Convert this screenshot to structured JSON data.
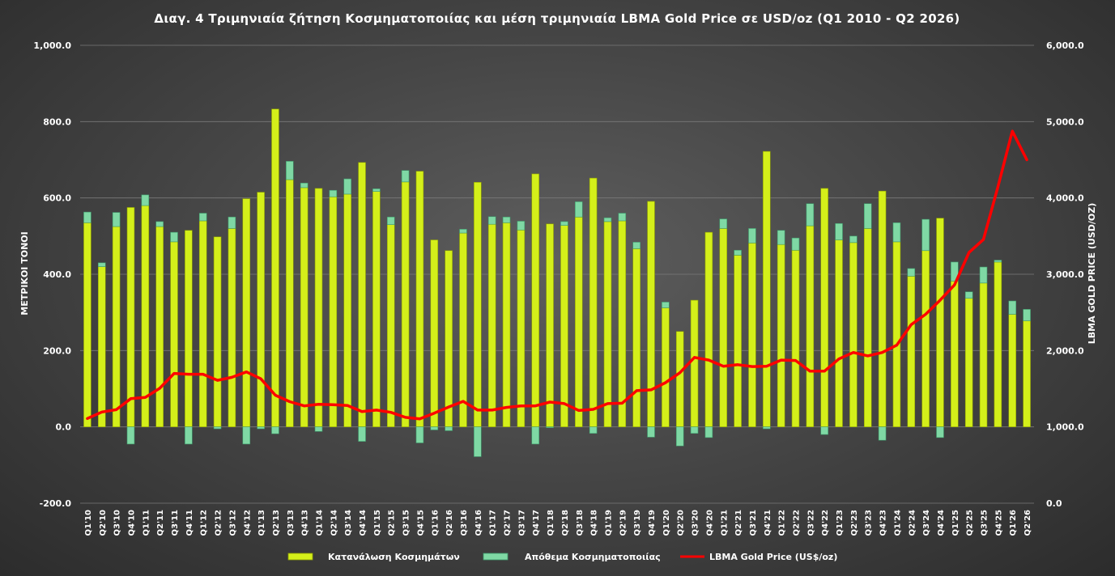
{
  "chart_data": {
    "type": "bar",
    "stacked": true,
    "title": "Διαγ. 4 Τριμηνιαία ζήτηση Κοσμηματοποιίας και μέση τριμηνιαία LBMA Gold Price σε USD/oz (Q1 2010 - Q2 2026)",
    "ylabel": "ΜΕΤΡΙΚΟΙ ΤΟΝΟΙ",
    "y2label": "LBMA GOLD PRICE (USD/OZ)",
    "ylim": [
      -200,
      1000
    ],
    "y2lim": [
      0,
      6000
    ],
    "y_ticks": [
      "-200.0",
      "0.0",
      "200.0",
      "400.0",
      "600.0",
      "800.0",
      "1,000.0"
    ],
    "y2_ticks": [
      "0.0",
      "1,000.0",
      "2,000.0",
      "3,000.0",
      "4,000.0",
      "5,000.0",
      "6,000.0"
    ],
    "grid": true,
    "legend_position": "bottom",
    "categories": [
      "Q1'10",
      "Q2'10",
      "Q3'10",
      "Q4'10",
      "Q1'11",
      "Q2'11",
      "Q3'11",
      "Q4'11",
      "Q1'12",
      "Q2'12",
      "Q3'12",
      "Q4'12",
      "Q1'13",
      "Q2'13",
      "Q3'13",
      "Q4'13",
      "Q1'14",
      "Q2'14",
      "Q3'14",
      "Q4'14",
      "Q1'15",
      "Q2'15",
      "Q3'15",
      "Q4'15",
      "Q1'16",
      "Q2'16",
      "Q3'16",
      "Q4'16",
      "Q1'17",
      "Q2'17",
      "Q3'17",
      "Q4'17",
      "Q1'18",
      "Q2'18",
      "Q3'18",
      "Q4'18",
      "Q1'19",
      "Q2'19",
      "Q3'19",
      "Q4'19",
      "Q1'20",
      "Q2'20",
      "Q3'20",
      "Q4'20",
      "Q1'21",
      "Q2'21",
      "Q3'21",
      "Q4'21",
      "Q1'22",
      "Q2'22",
      "Q3'22",
      "Q4'22",
      "Q1'23",
      "Q2'23",
      "Q3'23",
      "Q4'23",
      "Q1'24",
      "Q2'24",
      "Q3'24",
      "Q4'24",
      "Q1'25",
      "Q2'25",
      "Q3'25",
      "Q4'25",
      "Q1'26",
      "Q2'26"
    ],
    "series": [
      {
        "name": "Κατανάλωση Κοσμημάτων",
        "kind": "bar",
        "axis": "left",
        "color": "#d4ef1a",
        "values": [
          535,
          420,
          525,
          575,
          580,
          525,
          485,
          515,
          540,
          498,
          520,
          598,
          615,
          833,
          648,
          627,
          625,
          603,
          610,
          693,
          617,
          530,
          642,
          670,
          490,
          462,
          508,
          641,
          531,
          535,
          516,
          663,
          532,
          528,
          550,
          652,
          538,
          540,
          467,
          591,
          312,
          250,
          332,
          510,
          520,
          450,
          482,
          722,
          478,
          463,
          527,
          625,
          490,
          483,
          520,
          618,
          485,
          395,
          462,
          547,
          382,
          337,
          377,
          432,
          295,
          278
        ]
      },
      {
        "name": "Απόθεμα Κοσμηματοποιίας",
        "kind": "bar",
        "axis": "left",
        "color": "#7fd8a4",
        "values": [
          28,
          10,
          37,
          -45,
          28,
          13,
          25,
          -45,
          20,
          -5,
          30,
          -45,
          -5,
          -18,
          48,
          12,
          -12,
          17,
          40,
          -38,
          7,
          20,
          30,
          -42,
          -8,
          -10,
          10,
          -78,
          20,
          15,
          23,
          -45,
          -2,
          10,
          40,
          -17,
          10,
          20,
          17,
          -27,
          15,
          -50,
          -17,
          -28,
          25,
          13,
          38,
          -5,
          37,
          32,
          58,
          -20,
          43,
          17,
          65,
          -35,
          50,
          20,
          82,
          -28,
          50,
          17,
          42,
          5,
          35,
          30
        ]
      },
      {
        "name": "LBMA Gold Price (US$/oz)",
        "kind": "line",
        "axis": "right",
        "color": "#ff0000",
        "values": [
          1110,
          1195,
          1225,
          1370,
          1385,
          1505,
          1700,
          1690,
          1690,
          1610,
          1650,
          1720,
          1630,
          1415,
          1330,
          1275,
          1295,
          1290,
          1280,
          1200,
          1220,
          1190,
          1125,
          1105,
          1180,
          1260,
          1335,
          1220,
          1220,
          1255,
          1275,
          1275,
          1325,
          1305,
          1215,
          1230,
          1305,
          1310,
          1475,
          1485,
          1580,
          1710,
          1910,
          1875,
          1795,
          1815,
          1790,
          1795,
          1875,
          1870,
          1730,
          1730,
          1890,
          1975,
          1930,
          1975,
          2070,
          2340,
          2475,
          2660,
          2860,
          3285,
          3455,
          4145,
          4875,
          4500
        ]
      }
    ]
  }
}
